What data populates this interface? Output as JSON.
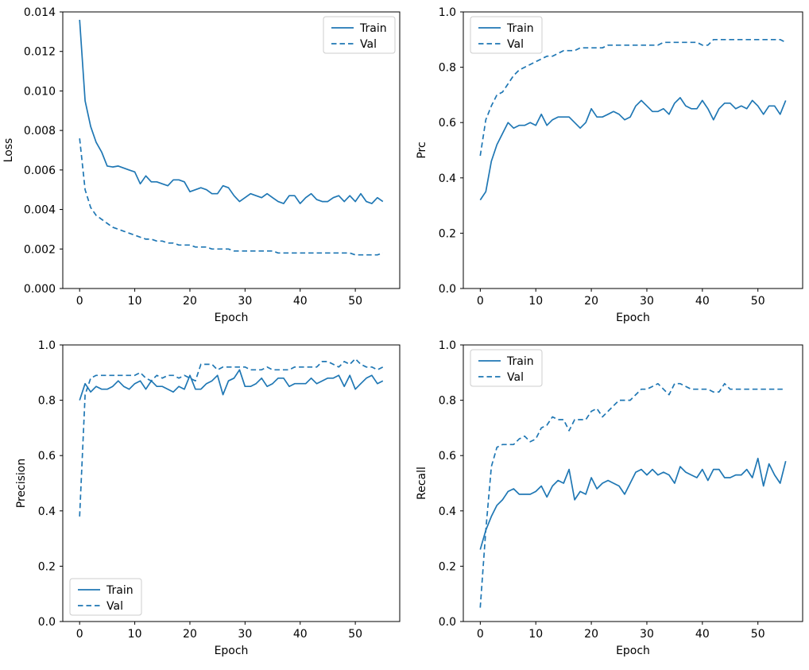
{
  "page": {
    "background": "#ffffff",
    "accent": "#1f77b4"
  },
  "chart_data": [
    {
      "id": "loss",
      "type": "line",
      "title": "",
      "xlabel": "Epoch",
      "ylabel": "Loss",
      "xlim": [
        0,
        55
      ],
      "ylim": [
        0,
        0.014
      ],
      "x_start": 0,
      "x_step": 1,
      "xticks": [
        0,
        10,
        20,
        30,
        40,
        50
      ],
      "ytick_labels": [
        "0.000",
        "0.002",
        "0.004",
        "0.006",
        "0.008",
        "0.010",
        "0.012",
        "0.014"
      ],
      "yticks": [
        0,
        0.002,
        0.004,
        0.006,
        0.008,
        0.01,
        0.012,
        0.014
      ],
      "grid": false,
      "legend_position": "upper-right",
      "series": [
        {
          "name": "Train",
          "style": "solid",
          "color": "#1f77b4",
          "values": [
            0.0136,
            0.0095,
            0.0082,
            0.0074,
            0.0069,
            0.0062,
            0.00615,
            0.0062,
            0.0061,
            0.006,
            0.0059,
            0.0053,
            0.0057,
            0.0054,
            0.0054,
            0.0053,
            0.0052,
            0.0055,
            0.0055,
            0.0054,
            0.0049,
            0.005,
            0.0051,
            0.005,
            0.0048,
            0.0048,
            0.0052,
            0.0051,
            0.0047,
            0.0044,
            0.0046,
            0.0048,
            0.0047,
            0.0046,
            0.0048,
            0.0046,
            0.0044,
            0.0043,
            0.0047,
            0.0047,
            0.0043,
            0.0046,
            0.0048,
            0.0045,
            0.0044,
            0.0044,
            0.0046,
            0.0047,
            0.0044,
            0.0047,
            0.0044,
            0.0048,
            0.0044,
            0.0043,
            0.0046,
            0.0044
          ]
        },
        {
          "name": "Val",
          "style": "dashed",
          "color": "#1f77b4",
          "values": [
            0.0076,
            0.005,
            0.0041,
            0.0037,
            0.0035,
            0.0033,
            0.0031,
            0.003,
            0.0029,
            0.0028,
            0.0027,
            0.0026,
            0.0025,
            0.0025,
            0.0024,
            0.0024,
            0.0023,
            0.0023,
            0.0022,
            0.0022,
            0.0022,
            0.0021,
            0.0021,
            0.0021,
            0.002,
            0.002,
            0.002,
            0.002,
            0.0019,
            0.0019,
            0.0019,
            0.0019,
            0.0019,
            0.0019,
            0.0019,
            0.0019,
            0.0018,
            0.0018,
            0.0018,
            0.0018,
            0.0018,
            0.0018,
            0.0018,
            0.0018,
            0.0018,
            0.0018,
            0.0018,
            0.0018,
            0.0018,
            0.0018,
            0.0017,
            0.0017,
            0.0017,
            0.0017,
            0.0017,
            0.0018
          ]
        }
      ]
    },
    {
      "id": "prc",
      "type": "line",
      "title": "",
      "xlabel": "Epoch",
      "ylabel": "Prc",
      "xlim": [
        0,
        55
      ],
      "ylim": [
        0,
        1.0
      ],
      "x_start": 0,
      "x_step": 1,
      "xticks": [
        0,
        10,
        20,
        30,
        40,
        50
      ],
      "ytick_labels": [
        "0.0",
        "0.2",
        "0.4",
        "0.6",
        "0.8",
        "1.0"
      ],
      "yticks": [
        0,
        0.2,
        0.4,
        0.6,
        0.8,
        1.0
      ],
      "grid": false,
      "legend_position": "upper-left",
      "series": [
        {
          "name": "Train",
          "style": "solid",
          "color": "#1f77b4",
          "values": [
            0.32,
            0.35,
            0.46,
            0.52,
            0.56,
            0.6,
            0.58,
            0.59,
            0.59,
            0.6,
            0.59,
            0.63,
            0.59,
            0.61,
            0.62,
            0.62,
            0.62,
            0.6,
            0.58,
            0.6,
            0.65,
            0.62,
            0.62,
            0.63,
            0.64,
            0.63,
            0.61,
            0.62,
            0.66,
            0.68,
            0.66,
            0.64,
            0.64,
            0.65,
            0.63,
            0.67,
            0.69,
            0.66,
            0.65,
            0.65,
            0.68,
            0.65,
            0.61,
            0.65,
            0.67,
            0.67,
            0.65,
            0.66,
            0.65,
            0.68,
            0.66,
            0.63,
            0.66,
            0.66,
            0.63,
            0.68
          ]
        },
        {
          "name": "Val",
          "style": "dashed",
          "color": "#1f77b4",
          "values": [
            0.48,
            0.61,
            0.66,
            0.7,
            0.71,
            0.74,
            0.77,
            0.79,
            0.8,
            0.81,
            0.82,
            0.83,
            0.84,
            0.84,
            0.85,
            0.86,
            0.86,
            0.86,
            0.87,
            0.87,
            0.87,
            0.87,
            0.87,
            0.88,
            0.88,
            0.88,
            0.88,
            0.88,
            0.88,
            0.88,
            0.88,
            0.88,
            0.88,
            0.89,
            0.89,
            0.89,
            0.89,
            0.89,
            0.89,
            0.89,
            0.88,
            0.88,
            0.9,
            0.9,
            0.9,
            0.9,
            0.9,
            0.9,
            0.9,
            0.9,
            0.9,
            0.9,
            0.9,
            0.9,
            0.9,
            0.89
          ]
        }
      ]
    },
    {
      "id": "precision",
      "type": "line",
      "title": "",
      "xlabel": "Epoch",
      "ylabel": "Precision",
      "xlim": [
        0,
        55
      ],
      "ylim": [
        0,
        1.0
      ],
      "x_start": 0,
      "x_step": 1,
      "xticks": [
        0,
        10,
        20,
        30,
        40,
        50
      ],
      "ytick_labels": [
        "0.0",
        "0.2",
        "0.4",
        "0.6",
        "0.8",
        "1.0"
      ],
      "yticks": [
        0,
        0.2,
        0.4,
        0.6,
        0.8,
        1.0
      ],
      "grid": false,
      "legend_position": "lower-left",
      "series": [
        {
          "name": "Train",
          "style": "solid",
          "color": "#1f77b4",
          "values": [
            0.8,
            0.86,
            0.83,
            0.85,
            0.84,
            0.84,
            0.85,
            0.87,
            0.85,
            0.84,
            0.86,
            0.87,
            0.84,
            0.87,
            0.85,
            0.85,
            0.84,
            0.83,
            0.85,
            0.84,
            0.89,
            0.84,
            0.84,
            0.86,
            0.87,
            0.89,
            0.82,
            0.87,
            0.88,
            0.91,
            0.85,
            0.85,
            0.86,
            0.88,
            0.85,
            0.86,
            0.88,
            0.88,
            0.85,
            0.86,
            0.86,
            0.86,
            0.88,
            0.86,
            0.87,
            0.88,
            0.88,
            0.89,
            0.85,
            0.89,
            0.84,
            0.86,
            0.88,
            0.89,
            0.86,
            0.87
          ]
        },
        {
          "name": "Val",
          "style": "dashed",
          "color": "#1f77b4",
          "values": [
            0.38,
            0.82,
            0.88,
            0.89,
            0.89,
            0.89,
            0.89,
            0.89,
            0.89,
            0.89,
            0.89,
            0.9,
            0.88,
            0.87,
            0.89,
            0.88,
            0.89,
            0.89,
            0.88,
            0.89,
            0.88,
            0.87,
            0.93,
            0.93,
            0.93,
            0.91,
            0.92,
            0.92,
            0.92,
            0.92,
            0.92,
            0.91,
            0.91,
            0.91,
            0.92,
            0.91,
            0.91,
            0.91,
            0.91,
            0.92,
            0.92,
            0.92,
            0.92,
            0.92,
            0.94,
            0.94,
            0.93,
            0.92,
            0.94,
            0.93,
            0.95,
            0.93,
            0.92,
            0.92,
            0.91,
            0.92
          ]
        }
      ]
    },
    {
      "id": "recall",
      "type": "line",
      "title": "",
      "xlabel": "Epoch",
      "ylabel": "Recall",
      "xlim": [
        0,
        55
      ],
      "ylim": [
        0,
        1.0
      ],
      "x_start": 0,
      "x_step": 1,
      "xticks": [
        0,
        10,
        20,
        30,
        40,
        50
      ],
      "ytick_labels": [
        "0.0",
        "0.2",
        "0.4",
        "0.6",
        "0.8",
        "1.0"
      ],
      "yticks": [
        0,
        0.2,
        0.4,
        0.6,
        0.8,
        1.0
      ],
      "grid": false,
      "legend_position": "upper-left",
      "series": [
        {
          "name": "Train",
          "style": "solid",
          "color": "#1f77b4",
          "values": [
            0.26,
            0.33,
            0.38,
            0.42,
            0.44,
            0.47,
            0.48,
            0.46,
            0.46,
            0.46,
            0.47,
            0.49,
            0.45,
            0.49,
            0.51,
            0.5,
            0.55,
            0.44,
            0.47,
            0.46,
            0.52,
            0.48,
            0.5,
            0.51,
            0.5,
            0.49,
            0.46,
            0.5,
            0.54,
            0.55,
            0.53,
            0.55,
            0.53,
            0.54,
            0.53,
            0.5,
            0.56,
            0.54,
            0.53,
            0.52,
            0.55,
            0.51,
            0.55,
            0.55,
            0.52,
            0.52,
            0.53,
            0.53,
            0.55,
            0.52,
            0.59,
            0.49,
            0.57,
            0.53,
            0.5,
            0.58
          ]
        },
        {
          "name": "Val",
          "style": "dashed",
          "color": "#1f77b4",
          "values": [
            0.05,
            0.33,
            0.56,
            0.63,
            0.64,
            0.64,
            0.64,
            0.66,
            0.67,
            0.65,
            0.66,
            0.7,
            0.71,
            0.74,
            0.73,
            0.73,
            0.69,
            0.73,
            0.73,
            0.73,
            0.76,
            0.77,
            0.74,
            0.76,
            0.78,
            0.8,
            0.8,
            0.8,
            0.82,
            0.84,
            0.84,
            0.85,
            0.86,
            0.84,
            0.82,
            0.86,
            0.86,
            0.85,
            0.84,
            0.84,
            0.84,
            0.84,
            0.83,
            0.83,
            0.86,
            0.84,
            0.84,
            0.84,
            0.84,
            0.84,
            0.84,
            0.84,
            0.84,
            0.84,
            0.84,
            0.84
          ]
        }
      ]
    }
  ]
}
